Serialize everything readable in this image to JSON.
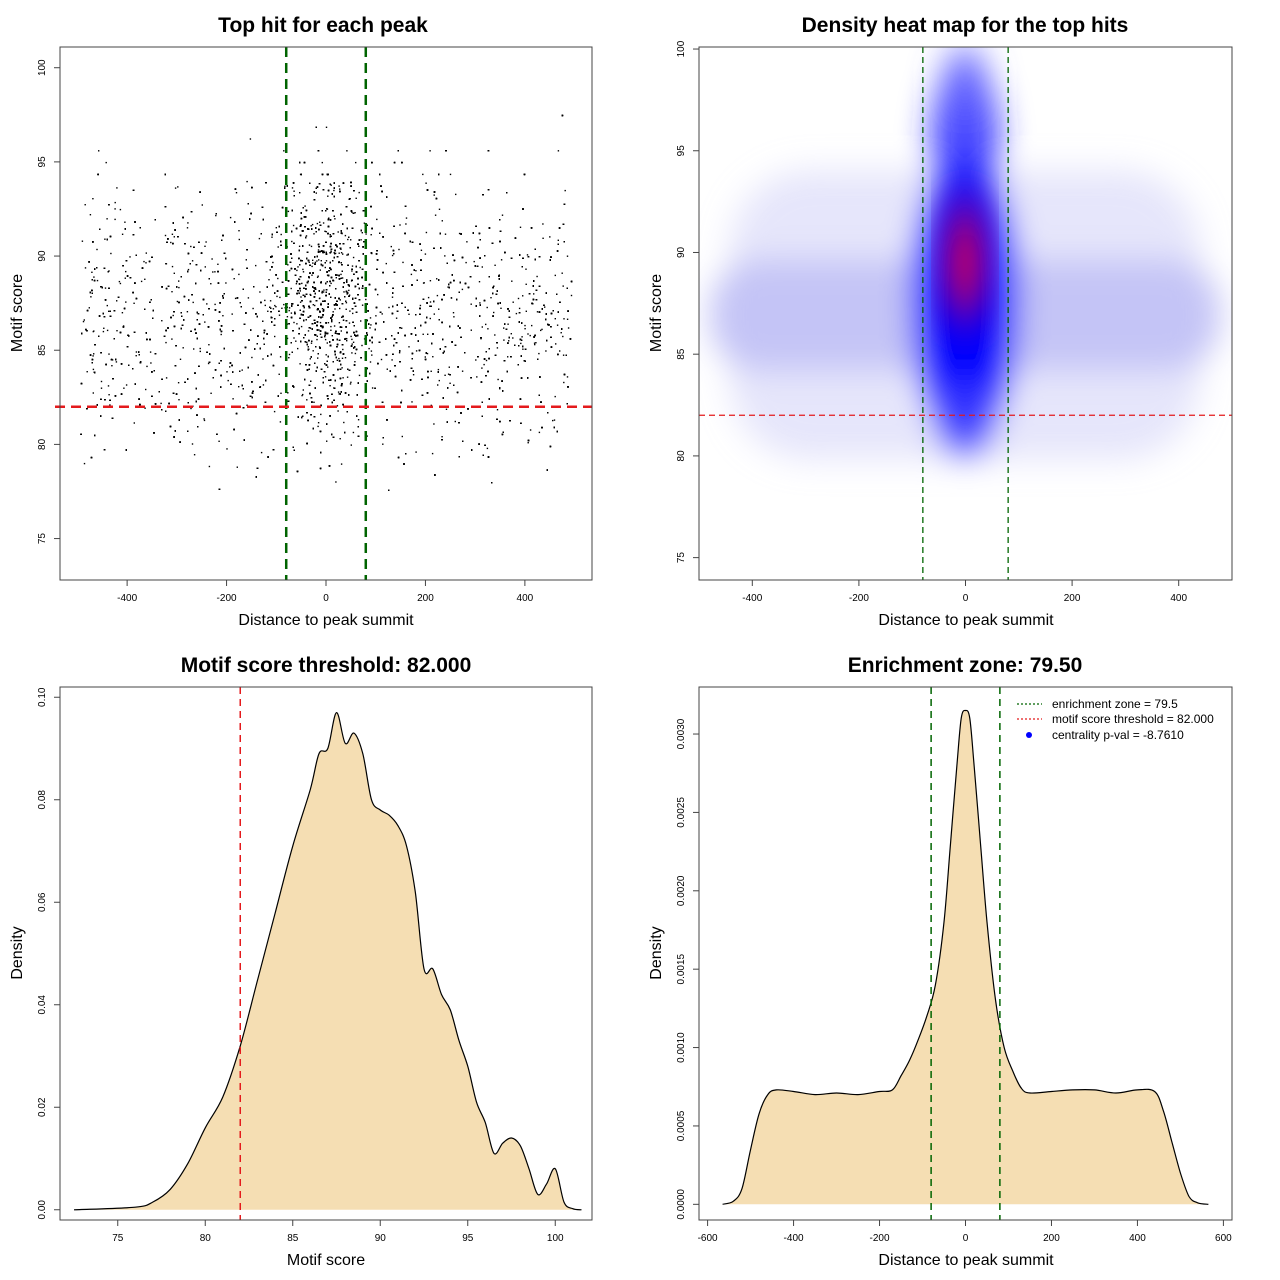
{
  "chart_data": [
    {
      "id": "scatter",
      "type": "scatter",
      "title": "Top hit for each peak",
      "xlabel": "Distance to peak summit",
      "ylabel": "Motif score",
      "xlim": [
        -535,
        535
      ],
      "ylim": [
        72.8,
        101.1
      ],
      "xticks": [
        -400,
        -200,
        0,
        200,
        400
      ],
      "yticks": [
        75,
        80,
        85,
        90,
        95,
        100
      ],
      "point_count": 9000,
      "points_note": "dense cloud of top-hit positions: uniform over x in [-495, 495], concentrated near x = 0 for high scores; scores mostly between 77 and 100",
      "vlines": [
        -80,
        80
      ],
      "vline_color": "#006400",
      "hline": 82.0,
      "hline_color": "#e41a1c"
    },
    {
      "id": "heatmap",
      "type": "heatmap",
      "title": "Density heat map for the top hits",
      "xlabel": "Distance to peak summit",
      "ylabel": "Motif score",
      "xlim": [
        -500,
        500
      ],
      "ylim": [
        73.9,
        100.1
      ],
      "xticks": [
        -400,
        -200,
        0,
        200,
        400
      ],
      "yticks": [
        75,
        80,
        85,
        90,
        95,
        100
      ],
      "hotspot": {
        "x": 0,
        "y": 88.5
      },
      "vlines": [
        -80,
        80
      ],
      "vline_color": "#006400",
      "hline": 82.0,
      "hline_color": "#e41a1c",
      "color_scale": [
        "#ffffff",
        "#0000ff",
        "#ff0000"
      ]
    },
    {
      "id": "score_density",
      "type": "area",
      "title": "Motif score threshold: 82.000",
      "xlabel": "Motif score",
      "ylabel": "Density",
      "xlim": [
        71.7,
        102.1
      ],
      "ylim": [
        -0.002,
        0.102
      ],
      "xticks": [
        75,
        80,
        85,
        90,
        95,
        100
      ],
      "yticks": [
        0.0,
        0.02,
        0.04,
        0.06,
        0.08,
        0.1
      ],
      "ytick_labels": [
        "0.00",
        "0.02",
        "0.04",
        "0.06",
        "0.08",
        "0.10"
      ],
      "x": [
        72.5,
        76,
        77,
        78,
        79,
        80,
        81,
        82,
        83,
        84,
        85,
        86,
        86.5,
        87,
        87.5,
        88,
        88.5,
        89,
        89.5,
        90,
        90.5,
        91,
        91.5,
        92,
        92.5,
        93,
        93.5,
        94,
        94.5,
        95,
        95.5,
        96,
        96.5,
        97,
        97.5,
        98,
        98.5,
        99,
        99.5,
        100,
        100.5,
        101,
        101.5
      ],
      "y": [
        0.0,
        0.0005,
        0.0015,
        0.004,
        0.009,
        0.016,
        0.022,
        0.032,
        0.045,
        0.058,
        0.071,
        0.082,
        0.089,
        0.09,
        0.097,
        0.091,
        0.093,
        0.089,
        0.08,
        0.078,
        0.077,
        0.075,
        0.071,
        0.062,
        0.047,
        0.047,
        0.042,
        0.039,
        0.033,
        0.028,
        0.021,
        0.017,
        0.011,
        0.013,
        0.014,
        0.0125,
        0.008,
        0.003,
        0.005,
        0.008,
        0.0015,
        0.0002,
        0.0
      ],
      "fill": "#f5deb3",
      "vline": 82.0,
      "vline_color": "#e41a1c"
    },
    {
      "id": "dist_density",
      "type": "area",
      "title": "Enrichment zone: 79.50",
      "xlabel": "Distance to peak summit",
      "ylabel": "Density",
      "xlim": [
        -620,
        620
      ],
      "ylim": [
        -0.0001,
        0.0033
      ],
      "xticks": [
        -600,
        -400,
        -200,
        0,
        200,
        400,
        600
      ],
      "yticks": [
        0.0,
        0.0005,
        0.001,
        0.0015,
        0.002,
        0.0025,
        0.003
      ],
      "ytick_labels": [
        "0.0000",
        "0.0005",
        "0.0010",
        "0.0015",
        "0.0020",
        "0.0025",
        "0.0030"
      ],
      "x": [
        -565,
        -540,
        -520,
        -500,
        -480,
        -460,
        -440,
        -400,
        -350,
        -300,
        -250,
        -200,
        -170,
        -150,
        -130,
        -110,
        -90,
        -70,
        -50,
        -35,
        -20,
        -10,
        0,
        10,
        20,
        35,
        50,
        70,
        90,
        110,
        130,
        150,
        200,
        250,
        300,
        350,
        400,
        440,
        460,
        480,
        500,
        520,
        540,
        565
      ],
      "y": [
        0.0,
        2e-05,
        0.0001,
        0.00035,
        0.00058,
        0.0007,
        0.00073,
        0.00072,
        0.0007,
        0.00071,
        0.0007,
        0.00072,
        0.00073,
        0.00082,
        0.00092,
        0.00105,
        0.0012,
        0.0014,
        0.0018,
        0.0023,
        0.0028,
        0.0031,
        0.00315,
        0.0031,
        0.0028,
        0.0023,
        0.0018,
        0.0013,
        0.001,
        0.00085,
        0.00074,
        0.00071,
        0.00072,
        0.00073,
        0.00073,
        0.00071,
        0.00073,
        0.00072,
        0.0006,
        0.0004,
        0.0002,
        5e-05,
        1e-05,
        0.0
      ],
      "fill": "#f5deb3",
      "vlines": [
        -80,
        80
      ],
      "vline_color": "#006400",
      "legend": {
        "position": "top-right",
        "entries": [
          {
            "label": "enrichment zone = 79.5",
            "style": "dotted",
            "color": "#006400"
          },
          {
            "label": "motif score threshold = 82.000",
            "style": "dotted",
            "color": "#e41a1c"
          },
          {
            "label": "centrality p-val = -8.7610",
            "style": "point",
            "color": "#0000ff"
          }
        ]
      }
    }
  ]
}
